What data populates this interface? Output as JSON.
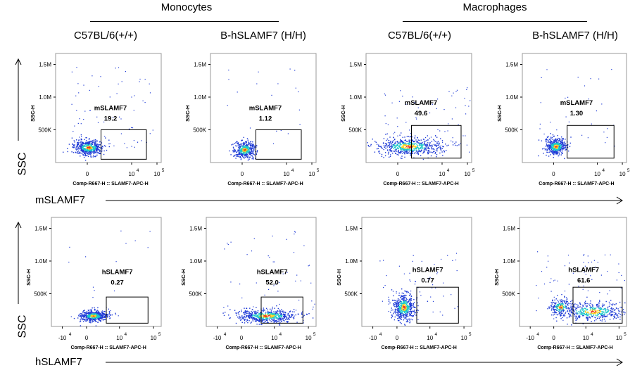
{
  "headers": {
    "monocytes": "Monocytes",
    "macrophages": "Macrophages"
  },
  "strains": [
    "C57BL/6(+/+)",
    "B-hSLAMF7 (H/H)",
    "C57BL/6(+/+)",
    "B-hSLAMF7 (H/H)"
  ],
  "y_axis_title": "SSC",
  "row_markers": [
    "mSLAMF7",
    "hSLAMF7"
  ],
  "colors": {
    "low": "#1f3bd6",
    "mid": "#19c8c8",
    "high": "#ffd21f",
    "peak": "#e8321e",
    "gate": "#000000"
  },
  "chart_data": [
    {
      "type": "scatter",
      "cell": "Monocytes",
      "strain": "C57BL/6(+/+)",
      "gate": "mSLAMF7",
      "percent": "19.2",
      "xlabel": "Comp-R667-H :: SLAMF7-APC-H",
      "ylabel": "SSC-H",
      "yticks": [
        "500K",
        "1.0M",
        "1.5M"
      ],
      "xticks": [
        "0",
        "10",
        "10"
      ],
      "xtick_exp": [
        "",
        "4",
        "5"
      ]
    },
    {
      "type": "scatter",
      "cell": "Monocytes",
      "strain": "B-hSLAMF7 (H/H)",
      "gate": "mSLAMF7",
      "percent": "1.12",
      "xlabel": "Comp-R667-H :: SLAMF7-APC-H",
      "ylabel": "SSC-H",
      "yticks": [
        "500K",
        "1.0M",
        "1.5M"
      ],
      "xticks": [
        "0",
        "10",
        "10"
      ],
      "xtick_exp": [
        "",
        "4",
        "5"
      ]
    },
    {
      "type": "scatter",
      "cell": "Macrophages",
      "strain": "C57BL/6(+/+)",
      "gate": "mSLAMF7",
      "percent": "49.6",
      "xlabel": "Comp-R667-H :: SLAMF7-APC-H",
      "ylabel": "SSC-H",
      "yticks": [
        "500K",
        "1.0M",
        "1.5M"
      ],
      "xticks": [
        "0",
        "10",
        "10"
      ],
      "xtick_exp": [
        "",
        "4",
        "5"
      ]
    },
    {
      "type": "scatter",
      "cell": "Macrophages",
      "strain": "B-hSLAMF7 (H/H)",
      "gate": "mSLAMF7",
      "percent": "1.30",
      "xlabel": "Comp-R667-H :: SLAMF7-APC-H",
      "ylabel": "SSC-H",
      "yticks": [
        "500K",
        "1.0M",
        "1.5M"
      ],
      "xticks": [
        "0",
        "10",
        "10"
      ],
      "xtick_exp": [
        "",
        "4",
        "5"
      ]
    },
    {
      "type": "scatter",
      "cell": "Monocytes",
      "strain": "C57BL/6(+/+)",
      "gate": "hSLAMF7",
      "percent": "0.27",
      "xlabel": "Comp-R667-H :: SLAMF7-APC-H",
      "ylabel": "SSC-H",
      "yticks": [
        "500K",
        "1.0M",
        "1.5M"
      ],
      "xticks": [
        "-10",
        "0",
        "10",
        "10"
      ],
      "xtick_exp": [
        "4",
        "",
        "4",
        "5"
      ]
    },
    {
      "type": "scatter",
      "cell": "Monocytes",
      "strain": "B-hSLAMF7 (H/H)",
      "gate": "hSLAMF7",
      "percent": "52.0",
      "xlabel": "Comp-R667-H :: SLAMF7-APC-H",
      "ylabel": "SSC-H",
      "yticks": [
        "500K",
        "1.0M",
        "1.5M"
      ],
      "xticks": [
        "-10",
        "0",
        "10",
        "10"
      ],
      "xtick_exp": [
        "4",
        "",
        "4",
        "5"
      ]
    },
    {
      "type": "scatter",
      "cell": "Macrophages",
      "strain": "C57BL/6(+/+)",
      "gate": "hSLAMF7",
      "percent": "0.77",
      "xlabel": "Comp-R667-H :: SLAMF7-APC-H",
      "ylabel": "SSC-H",
      "yticks": [
        "500K",
        "1.0M",
        "1.5M"
      ],
      "xticks": [
        "-10",
        "0",
        "10",
        "10"
      ],
      "xtick_exp": [
        "4",
        "",
        "4",
        "5"
      ]
    },
    {
      "type": "scatter",
      "cell": "Macrophages",
      "strain": "B-hSLAMF7 (H/H)",
      "gate": "hSLAMF7",
      "percent": "61.6",
      "xlabel": "Comp-R667-H :: SLAMF7-APC-H",
      "ylabel": "SSC-H",
      "yticks": [
        "500K",
        "1.0M",
        "1.5M"
      ],
      "xticks": [
        "-10",
        "0",
        "10",
        "10"
      ],
      "xtick_exp": [
        "4",
        "",
        "4",
        "5"
      ]
    }
  ]
}
